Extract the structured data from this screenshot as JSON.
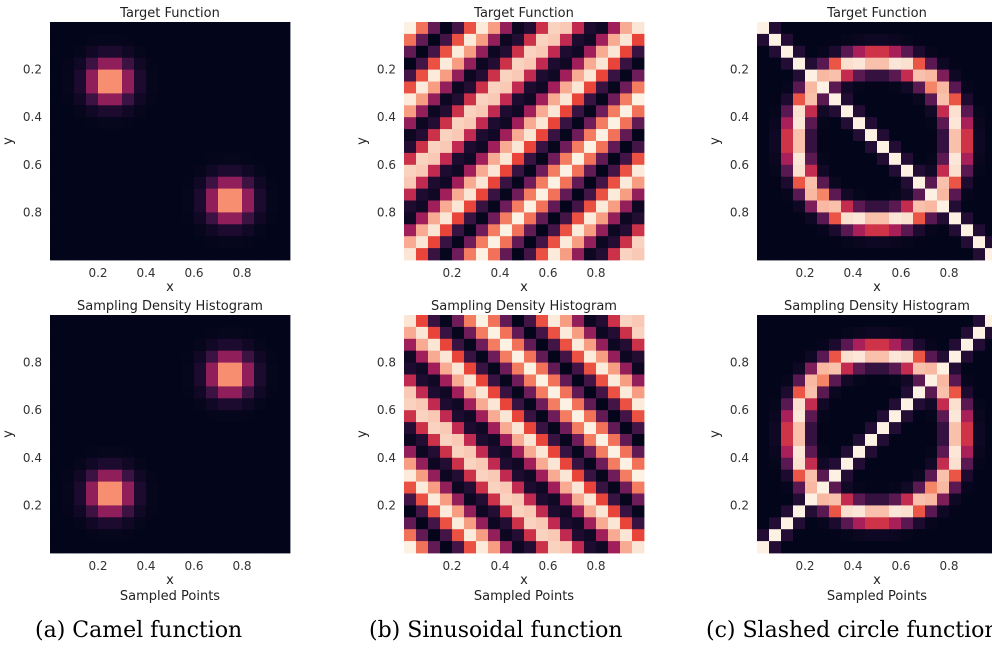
{
  "chart_data": [
    {
      "type": "heatmap",
      "panel": "a",
      "row": "target",
      "title": "Target Function",
      "xlabel": "x",
      "ylabel": "y",
      "footer": "",
      "function": "camel",
      "y_orientation": "down",
      "xticks": [
        "0.2",
        "0.4",
        "0.6",
        "0.8"
      ],
      "yticks": [
        "0.2",
        "0.4",
        "0.6",
        "0.8"
      ],
      "xlim": [
        0,
        1
      ],
      "ylim": [
        0,
        1
      ],
      "grid_size": 20,
      "grid": false
    },
    {
      "type": "heatmap",
      "panel": "b",
      "row": "target",
      "title": "Target Function",
      "xlabel": "x",
      "ylabel": "y",
      "footer": "",
      "function": "sinusoidal",
      "y_orientation": "down",
      "xticks": [
        "0.2",
        "0.4",
        "0.6",
        "0.8"
      ],
      "yticks": [
        "0.2",
        "0.4",
        "0.6",
        "0.8"
      ],
      "xlim": [
        0,
        1
      ],
      "ylim": [
        0,
        1
      ],
      "grid_size": 20,
      "grid": false
    },
    {
      "type": "heatmap",
      "panel": "c",
      "row": "target",
      "title": "Target Function",
      "xlabel": "x",
      "ylabel": "y",
      "footer": "",
      "function": "slashed-circle",
      "y_orientation": "down",
      "xticks": [
        "0.2",
        "0.4",
        "0.6",
        "0.8"
      ],
      "yticks": [
        "0.2",
        "0.4",
        "0.6",
        "0.8"
      ],
      "xlim": [
        0,
        1
      ],
      "ylim": [
        0,
        1
      ],
      "grid_size": 20,
      "grid": false
    },
    {
      "type": "heatmap",
      "panel": "a",
      "row": "sampled",
      "title": "Sampling Density Histogram",
      "xlabel": "x",
      "ylabel": "y",
      "footer": "Sampled Points",
      "function": "camel",
      "y_orientation": "up",
      "xticks": [
        "0.2",
        "0.4",
        "0.6",
        "0.8"
      ],
      "yticks": [
        "0.2",
        "0.4",
        "0.6",
        "0.8"
      ],
      "xlim": [
        0,
        1
      ],
      "ylim": [
        0,
        1
      ],
      "grid_size": 20,
      "grid": false
    },
    {
      "type": "heatmap",
      "panel": "b",
      "row": "sampled",
      "title": "Sampling Density Histogram",
      "xlabel": "x",
      "ylabel": "y",
      "footer": "Sampled Points",
      "function": "sinusoidal",
      "y_orientation": "up",
      "xticks": [
        "0.2",
        "0.4",
        "0.6",
        "0.8"
      ],
      "yticks": [
        "0.2",
        "0.4",
        "0.6",
        "0.8"
      ],
      "xlim": [
        0,
        1
      ],
      "ylim": [
        0,
        1
      ],
      "grid_size": 20,
      "grid": false
    },
    {
      "type": "heatmap",
      "panel": "c",
      "row": "sampled",
      "title": "Sampling Density Histogram",
      "xlabel": "x",
      "ylabel": "y",
      "footer": "Sampled Points",
      "function": "slashed-circle",
      "y_orientation": "up",
      "xticks": [
        "0.2",
        "0.4",
        "0.6",
        "0.8"
      ],
      "yticks": [
        "0.2",
        "0.4",
        "0.6",
        "0.8"
      ],
      "xlim": [
        0,
        1
      ],
      "ylim": [
        0,
        1
      ],
      "grid_size": 20,
      "grid": false
    }
  ],
  "captions": {
    "a": "(a) Camel function",
    "b": "(b) Sinusoidal function",
    "c": "(c) Slashed circle function"
  },
  "colormap": [
    "#03051a",
    "#2b0f3a",
    "#6b1c5a",
    "#b01f5a",
    "#e8443a",
    "#f6896a",
    "#fcf1e3"
  ]
}
